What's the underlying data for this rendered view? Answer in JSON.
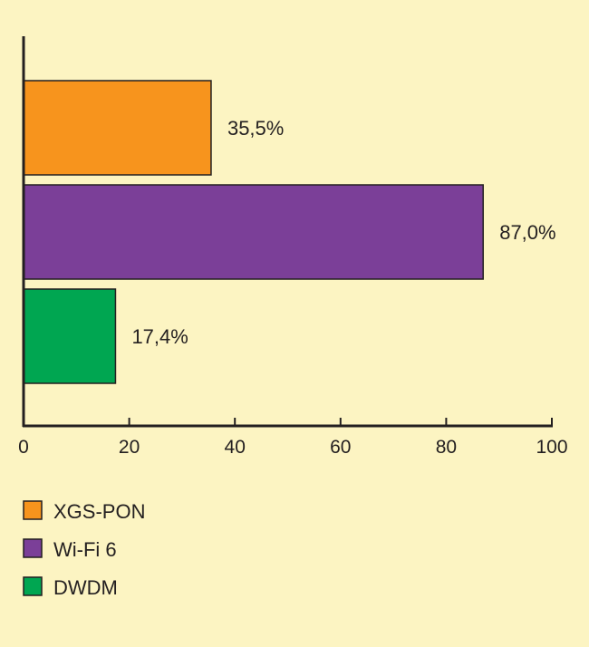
{
  "chart_data": {
    "type": "bar",
    "orientation": "horizontal",
    "categories": [
      "XGS-PON",
      "Wi-Fi 6",
      "DWDM"
    ],
    "values": [
      35.5,
      87.0,
      17.4
    ],
    "data_labels": [
      "35,5%",
      "87,0%",
      "17,4%"
    ],
    "colors": [
      "#f7941d",
      "#7b3f98",
      "#00a651"
    ],
    "xlim": [
      0,
      100
    ],
    "xticks": [
      0,
      20,
      40,
      60,
      80,
      100
    ],
    "xtick_labels": [
      "0",
      "20",
      "40",
      "60",
      "80",
      "100"
    ],
    "grid": false,
    "legend": {
      "position": "bottom-left",
      "entries": [
        "XGS-PON",
        "Wi-Fi 6",
        "DWDM"
      ]
    },
    "title": "",
    "xlabel": "",
    "ylabel": ""
  }
}
